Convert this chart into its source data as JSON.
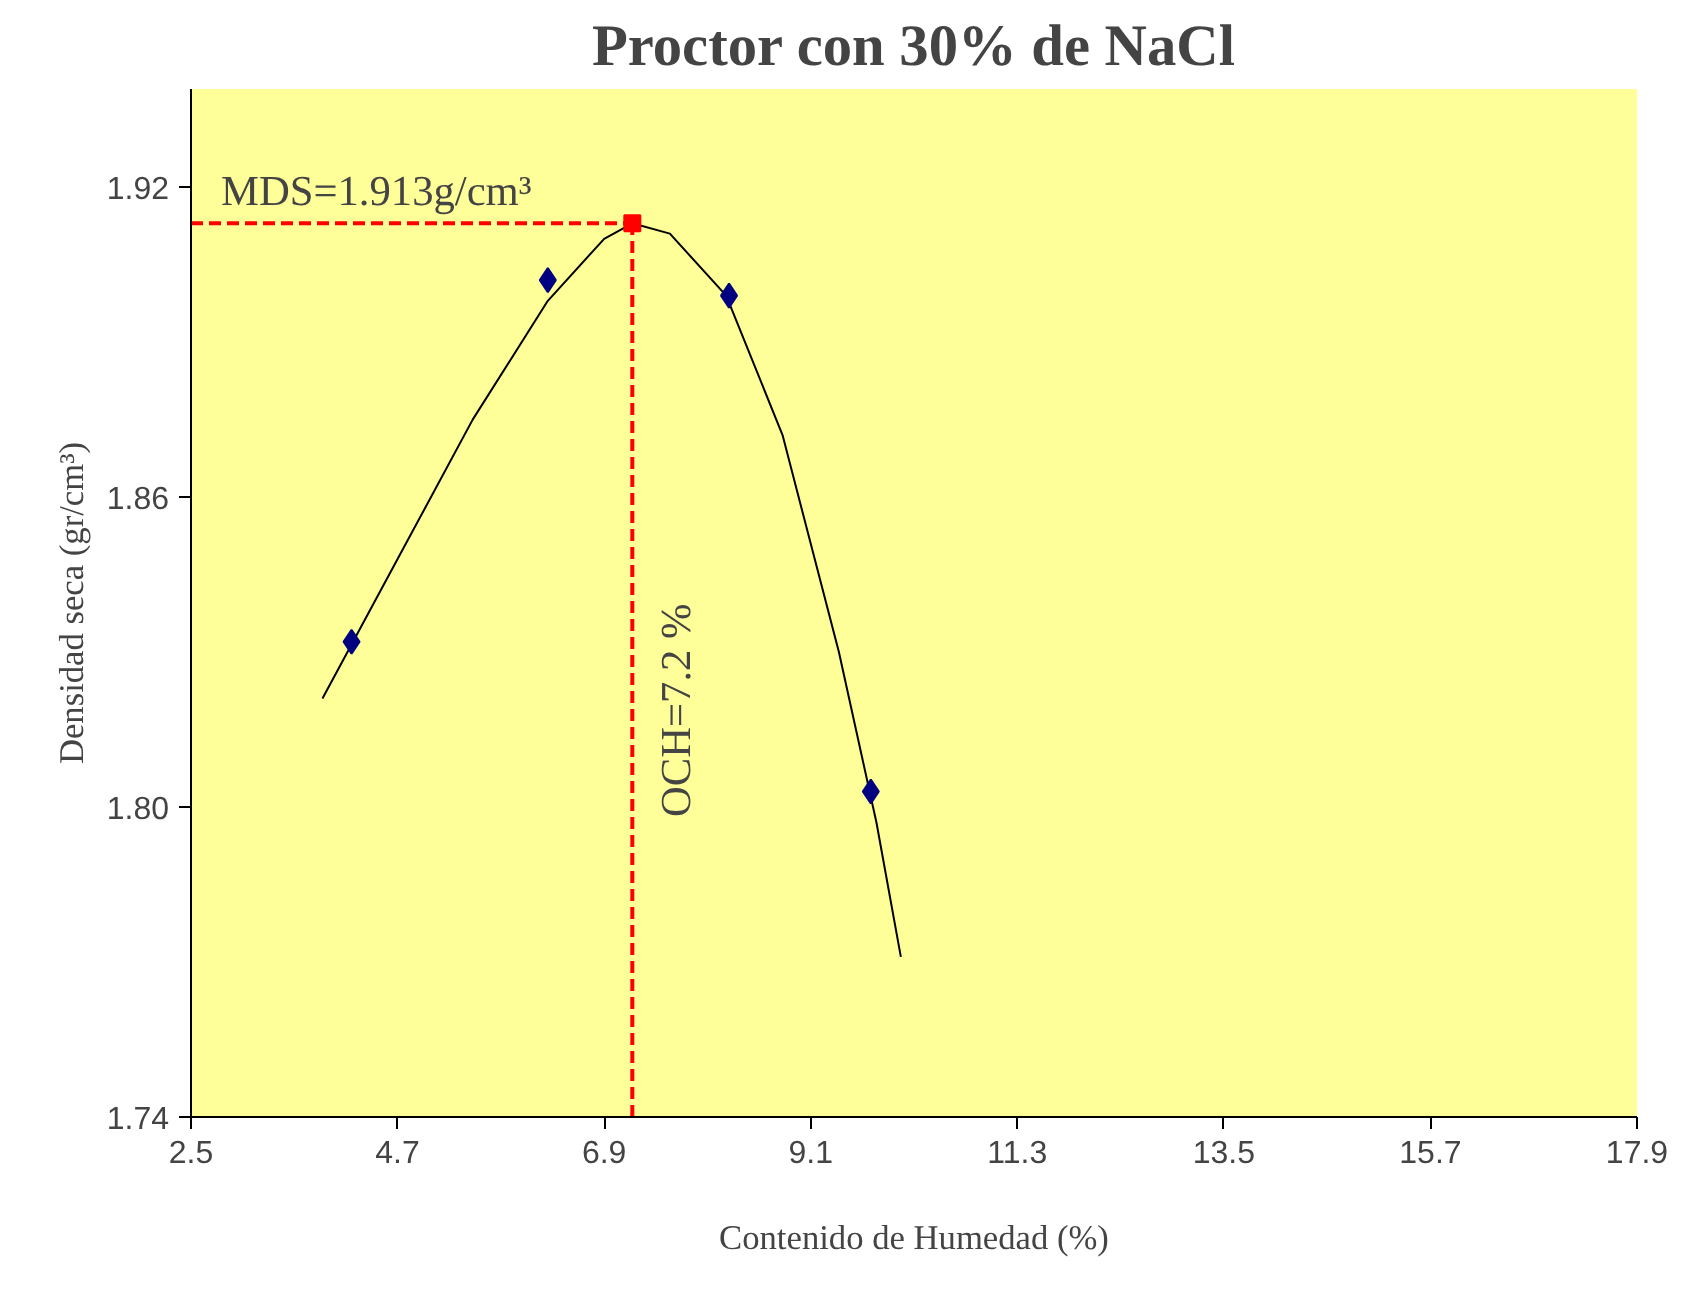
{
  "chart_data": {
    "type": "scatter",
    "title": "Proctor con 30% de NaCl",
    "xlabel": "Contenido de Humedad (%)",
    "ylabel": "Densidad seca (gr/cm³)",
    "xlim": [
      2.5,
      17.9
    ],
    "xticks": [
      2.5,
      4.7,
      6.9,
      9.1,
      11.3,
      13.5,
      15.7,
      17.9
    ],
    "ylim": [
      1.74,
      1.939
    ],
    "yticks": [
      {
        "value": 1.74,
        "label": "1.74"
      },
      {
        "value": 1.8,
        "label": "1.80"
      },
      {
        "value": 1.86,
        "label": "1.86"
      },
      {
        "value": 1.92,
        "label": "1.92"
      }
    ],
    "grid": false,
    "series": [
      {
        "type": "line",
        "color": "#000000",
        "marker": "none",
        "line_style": "solid",
        "x": [
          3.9,
          4.7,
          5.5,
          6.3,
          6.9,
          7.2,
          7.6,
          8.2,
          8.8,
          9.4,
          9.8,
          10.06
        ],
        "values": [
          1.821,
          1.848,
          1.875,
          1.898,
          1.91,
          1.913,
          1.911,
          1.899,
          1.872,
          1.83,
          1.797,
          1.771
        ]
      },
      {
        "color": "#000080",
        "marker": "diamond",
        "x": [
          4.21,
          6.3,
          8.23,
          9.74
        ],
        "values": [
          1.832,
          1.902,
          1.899,
          1.803
        ]
      },
      {
        "color": "#ff0000",
        "marker": "square",
        "x": [
          7.2
        ],
        "values": [
          1.913
        ]
      }
    ],
    "ref_lines": [
      {
        "axis": "y",
        "value": 1.913,
        "label": "MDS=1.913g/cm³",
        "color": "#ff0000",
        "line_style": "dashed"
      },
      {
        "axis": "x",
        "value": 7.2,
        "label": "OCH=7.2 %",
        "color": "#ff0000",
        "line_style": "dashed"
      }
    ]
  }
}
